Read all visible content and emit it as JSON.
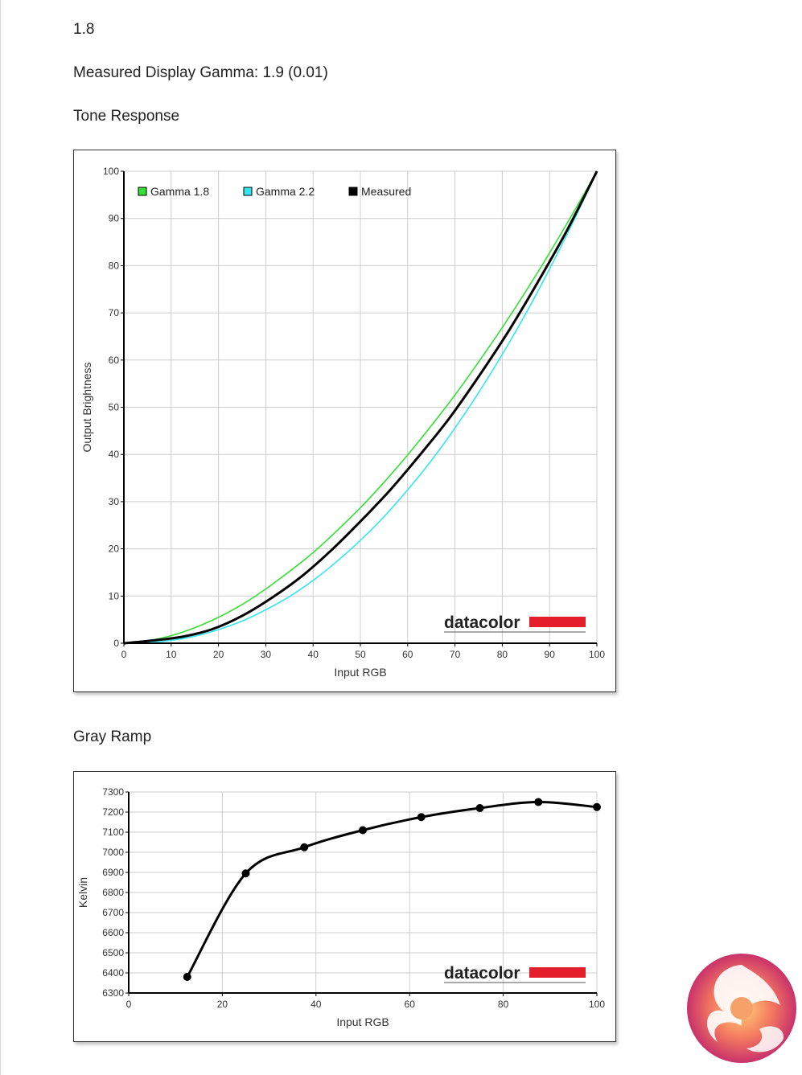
{
  "header": {
    "gamma_setting": "1.8",
    "measured_gamma": "Measured Display Gamma: 1.9 (0.01)"
  },
  "sections": {
    "tone_title": "Tone Response",
    "gray_title": "Gray Ramp"
  },
  "watermark": "datacolor",
  "colors": {
    "gamma18": "#33e033",
    "gamma22": "#33e6ee",
    "measured": "#000000",
    "grid": "#cccccc",
    "brand_red": "#e41e2b"
  },
  "chart_data": [
    {
      "type": "line",
      "title": "",
      "xlabel": "Input RGB",
      "ylabel": "Output Brightness",
      "xlim": [
        0,
        100
      ],
      "ylim": [
        0,
        100
      ],
      "x_ticks": [
        0,
        10,
        20,
        30,
        40,
        50,
        60,
        70,
        80,
        90,
        100
      ],
      "y_ticks": [
        0,
        10,
        20,
        30,
        40,
        50,
        60,
        70,
        80,
        90,
        100
      ],
      "grid": true,
      "legend_position": "top-left",
      "series": [
        {
          "name": "Gamma 1.8",
          "color": "#33e033",
          "x": [
            0,
            5,
            10,
            15,
            20,
            25,
            30,
            35,
            40,
            45,
            50,
            55,
            60,
            65,
            70,
            75,
            80,
            85,
            90,
            95,
            100
          ],
          "y": [
            0,
            0.5,
            1.6,
            3.3,
            5.5,
            8.2,
            11.5,
            15.2,
            19.2,
            23.8,
            28.7,
            34.1,
            39.9,
            46.1,
            52.6,
            59.6,
            66.9,
            74.6,
            82.7,
            91.2,
            100
          ]
        },
        {
          "name": "Gamma 2.2",
          "color": "#33e6ee",
          "x": [
            0,
            5,
            10,
            15,
            20,
            25,
            30,
            35,
            40,
            45,
            50,
            55,
            60,
            65,
            70,
            75,
            80,
            85,
            90,
            95,
            100
          ],
          "y": [
            0,
            0.1,
            0.6,
            1.5,
            2.9,
            4.7,
            7.1,
            9.9,
            13.3,
            17.3,
            21.8,
            26.8,
            32.5,
            38.7,
            45.6,
            53.1,
            61.2,
            69.9,
            79.3,
            89.3,
            100
          ]
        },
        {
          "name": "Measured",
          "color": "#000000",
          "x": [
            0,
            6.25,
            12.5,
            18.75,
            25,
            31.25,
            37.5,
            43.75,
            50,
            56.25,
            62.5,
            68.75,
            75,
            81.25,
            87.5,
            93.75,
            100
          ],
          "y": [
            0,
            0.6,
            1.4,
            3.0,
            5.8,
            9.6,
            14.1,
            19.6,
            25.8,
            32.4,
            39.8,
            47.6,
            56.5,
            66.0,
            76.5,
            87.6,
            100
          ]
        }
      ]
    },
    {
      "type": "line",
      "title": "",
      "xlabel": "Input RGB",
      "ylabel": "Kelvin",
      "xlim": [
        0,
        100
      ],
      "ylim": [
        6300,
        7300
      ],
      "x_ticks": [
        0,
        20,
        40,
        60,
        80,
        100
      ],
      "y_ticks": [
        6300,
        6400,
        6500,
        6600,
        6700,
        6800,
        6900,
        7000,
        7100,
        7200,
        7300
      ],
      "grid": true,
      "series": [
        {
          "name": "",
          "color": "#000000",
          "x": [
            12.5,
            25,
            37.5,
            50,
            62.5,
            75,
            87.5,
            100
          ],
          "y": [
            6380,
            6895,
            7025,
            7110,
            7175,
            7220,
            7250,
            7225
          ]
        }
      ]
    }
  ]
}
